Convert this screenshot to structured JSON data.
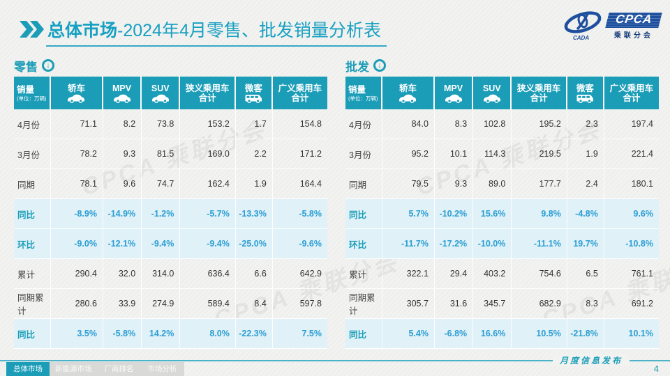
{
  "title": {
    "prefix": "总体市场",
    "rest": "-2024年4月零售、批发销量分析表"
  },
  "logo": {
    "brand": "CPCA",
    "brand_sub": "乘联分会",
    "cada": "CADA"
  },
  "colors": {
    "teal": "#1b9db8",
    "title_teal": "#16a0c2",
    "rate_text_blue": "#2b9ed4",
    "rate_row_bg": "#e0f1f7",
    "logo_blue": "#1d4f9e",
    "footer_line": "#4db3c9",
    "nav_inactive_bg": "#d9d9d7"
  },
  "icons": {
    "section_arrow_glyph": "↓",
    "title_chevron": "double-chevron-right",
    "car": "car-icon",
    "van": "van-icon"
  },
  "columns": [
    {
      "label": "销量",
      "sub": "(单位：万辆)"
    },
    {
      "label": "轿车",
      "icon": "car"
    },
    {
      "label": "MPV",
      "icon": "car"
    },
    {
      "label": "SUV",
      "icon": "car"
    },
    {
      "label": "狭义乘用车",
      "line2": "合计"
    },
    {
      "label": "微客",
      "icon": "van"
    },
    {
      "label": "广义乘用车",
      "line2": "合计"
    }
  ],
  "tables": [
    {
      "id": "retail",
      "label": "零售",
      "rows": [
        {
          "label": "4月份",
          "type": "data",
          "values": [
            "71.1",
            "8.2",
            "73.8",
            "153.2",
            "1.7",
            "154.8"
          ]
        },
        {
          "label": "3月份",
          "type": "data",
          "values": [
            "78.2",
            "9.3",
            "81.5",
            "169.0",
            "2.2",
            "171.2"
          ]
        },
        {
          "label": "同期",
          "type": "data",
          "values": [
            "78.1",
            "9.6",
            "74.7",
            "162.4",
            "1.9",
            "164.4"
          ]
        },
        {
          "label": "同比",
          "type": "rate",
          "values": [
            "-8.9%",
            "-14.9%",
            "-1.2%",
            "-5.7%",
            "-13.3%",
            "-5.8%"
          ]
        },
        {
          "label": "环比",
          "type": "rate",
          "values": [
            "-9.0%",
            "-12.1%",
            "-9.4%",
            "-9.4%",
            "-25.0%",
            "-9.6%"
          ]
        },
        {
          "label": "累计",
          "type": "data",
          "values": [
            "290.4",
            "32.0",
            "314.0",
            "636.4",
            "6.6",
            "642.9"
          ]
        },
        {
          "label": "同期累计",
          "type": "data",
          "values": [
            "280.6",
            "33.9",
            "274.9",
            "589.4",
            "8.4",
            "597.8"
          ]
        },
        {
          "label": "同比",
          "type": "rate",
          "values": [
            "3.5%",
            "-5.8%",
            "14.2%",
            "8.0%",
            "-22.3%",
            "7.5%"
          ]
        }
      ]
    },
    {
      "id": "wholesale",
      "label": "批发",
      "rows": [
        {
          "label": "4月份",
          "type": "data",
          "values": [
            "84.0",
            "8.3",
            "102.8",
            "195.2",
            "2.3",
            "197.4"
          ]
        },
        {
          "label": "3月份",
          "type": "data",
          "values": [
            "95.2",
            "10.1",
            "114.3",
            "219.5",
            "1.9",
            "221.4"
          ]
        },
        {
          "label": "同期",
          "type": "data",
          "values": [
            "79.5",
            "9.3",
            "89.0",
            "177.7",
            "2.4",
            "180.1"
          ]
        },
        {
          "label": "同比",
          "type": "rate",
          "values": [
            "5.7%",
            "-10.2%",
            "15.6%",
            "9.8%",
            "-4.8%",
            "9.6%"
          ]
        },
        {
          "label": "环比",
          "type": "rate",
          "values": [
            "-11.7%",
            "-17.2%",
            "-10.0%",
            "-11.1%",
            "19.7%",
            "-10.8%"
          ]
        },
        {
          "label": "累计",
          "type": "data",
          "values": [
            "322.1",
            "29.4",
            "403.2",
            "754.6",
            "6.5",
            "761.1"
          ]
        },
        {
          "label": "同期累计",
          "type": "data",
          "values": [
            "305.7",
            "31.6",
            "345.7",
            "682.9",
            "8.3",
            "691.2"
          ]
        },
        {
          "label": "同比",
          "type": "rate",
          "values": [
            "5.4%",
            "-6.8%",
            "16.6%",
            "10.5%",
            "-21.8%",
            "10.1%"
          ]
        }
      ]
    }
  ],
  "watermark": "CPCA 乘联分会",
  "footer": {
    "nav": [
      {
        "label": "总体市场",
        "active": true
      },
      {
        "label": "新能源市场",
        "active": false
      },
      {
        "label": "厂商排名",
        "active": false
      },
      {
        "label": "市场分析",
        "active": false
      }
    ],
    "release_label": "月度信息发布",
    "page_number": "4"
  }
}
